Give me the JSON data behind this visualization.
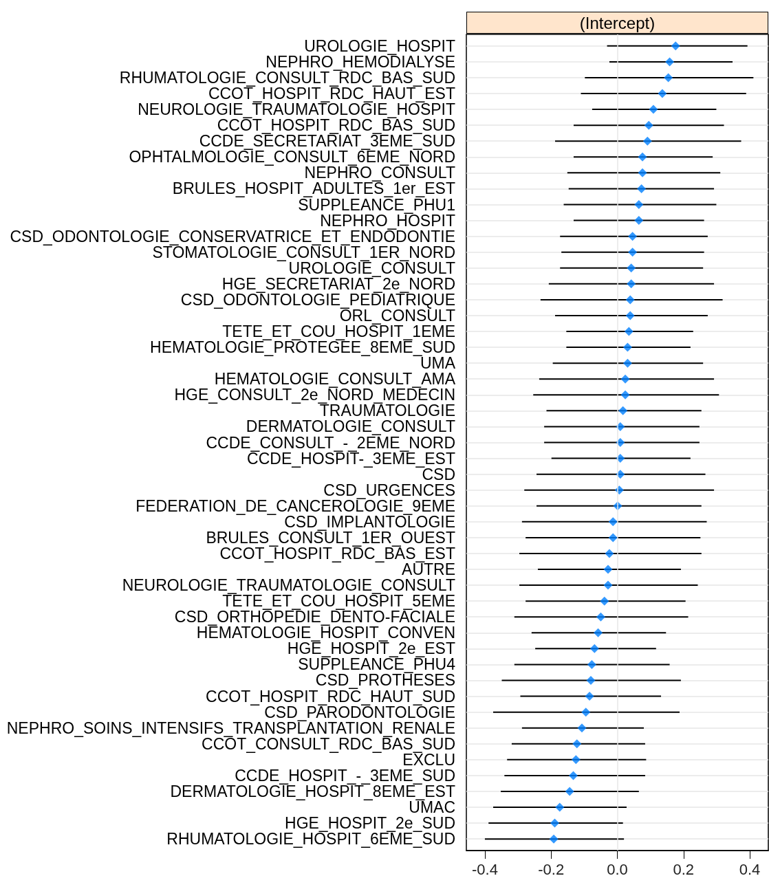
{
  "chart_data": {
    "type": "scatter",
    "title": "(Intercept)",
    "orientation": "horizontal",
    "marker": "diamond",
    "color": "#0080ff",
    "grid": "y",
    "categories": [
      "UROLOGIE_HOSPIT",
      "NEPHRO_HEMODIALYSE",
      "RHUMATOLOGIE_CONSULT_RDC_BAS_SUD",
      "CCOT_HOSPIT_RDC_HAUT_EST",
      "NEUROLOGIE_TRAUMATOLOGIE_HOSPIT",
      "CCOT_HOSPIT_RDC_BAS_SUD",
      "CCDE_SECRETARIAT_3EME_SUD",
      "OPHTALMOLOGIE_CONSULT_6EME_NORD",
      "NEPHRO_CONSULT",
      "BRULES_HOSPIT_ADULTES_1er_EST",
      "SUPPLEANCE_PHU1",
      "NEPHRO_HOSPIT",
      "CSD_ODONTOLOGIE_CONSERVATRICE_ET_ENDODONTIE",
      "STOMATOLOGIE_CONSULT_1ER_NORD",
      "UROLOGIE_CONSULT",
      "HGE_SECRETARIAT_2e_NORD",
      "CSD_ODONTOLOGIE_PEDIATRIQUE",
      "ORL_CONSULT",
      "TETE_ET_COU_HOSPIT_1EME",
      "HEMATOLOGIE_PROTEGEE_8EME_SUD",
      "UMA",
      "HEMATOLOGIE_CONSULT_AMA",
      "HGE_CONSULT_2e_NORD_MEDECIN",
      "TRAUMATOLOGIE",
      "DERMATOLOGIE_CONSULT",
      "CCDE_CONSULT_-_2EME_NORD",
      "CCDE_HOSPIT-_3EME_EST",
      "CSD",
      "CSD_URGENCES",
      "FEDERATION_DE_CANCEROLOGIE_9EME",
      "CSD_IMPLANTOLOGIE",
      "BRULES_CONSULT_1ER_OUEST",
      "CCOT_HOSPIT_RDC_BAS_EST",
      "AUTRE",
      "NEUROLOGIE_TRAUMATOLOGIE_CONSULT",
      "TETE_ET_COU_HOSPIT_5EME",
      "CSD_ORTHOPEDIE_DENTO-FACIALE",
      "HEMATOLOGIE_HOSPIT_CONVEN",
      "HGE_HOSPIT_2e_EST",
      "SUPPLEANCE_PHU4",
      "CSD_PROTHESES",
      "CCOT_HOSPIT_RDC_HAUT_SUD",
      "CSD_PARODONTOLOGIE",
      "NEPHRO_SOINS_INTENSIFS_TRANSPLANTATION_RENALE",
      "CCOT_CONSULT_RDC_BAS_SUD",
      "EXCLU",
      "CCDE_HOSPIT_-_3EME_SUD",
      "DERMATOLOGIE_HOSPIT_8EME_EST",
      "UMAC",
      "HGE_HOSPIT_2e_SUD",
      "RHUMATOLOGIE_HOSPIT_6EME_SUD"
    ],
    "values": [
      0.176,
      0.158,
      0.154,
      0.136,
      0.109,
      0.095,
      0.091,
      0.076,
      0.076,
      0.073,
      0.065,
      0.065,
      0.046,
      0.046,
      0.042,
      0.042,
      0.039,
      0.039,
      0.035,
      0.031,
      0.031,
      0.024,
      0.024,
      0.017,
      0.009,
      0.009,
      0.009,
      0.009,
      0.006,
      0.001,
      -0.013,
      -0.013,
      -0.024,
      -0.028,
      -0.028,
      -0.039,
      -0.05,
      -0.058,
      -0.069,
      -0.077,
      -0.08,
      -0.084,
      -0.095,
      -0.107,
      -0.122,
      -0.125,
      -0.133,
      -0.144,
      -0.174,
      -0.189,
      -0.192
    ],
    "errors": [
      [
        -0.031,
        0.393
      ],
      [
        -0.024,
        0.348
      ],
      [
        -0.098,
        0.411
      ],
      [
        -0.11,
        0.389
      ],
      [
        -0.076,
        0.299
      ],
      [
        -0.132,
        0.322
      ],
      [
        -0.188,
        0.374
      ],
      [
        -0.132,
        0.288
      ],
      [
        -0.151,
        0.311
      ],
      [
        -0.147,
        0.292
      ],
      [
        -0.162,
        0.299
      ],
      [
        -0.132,
        0.262
      ],
      [
        -0.173,
        0.273
      ],
      [
        -0.169,
        0.262
      ],
      [
        -0.173,
        0.259
      ],
      [
        -0.207,
        0.292
      ],
      [
        -0.232,
        0.318
      ],
      [
        -0.188,
        0.273
      ],
      [
        -0.154,
        0.229
      ],
      [
        -0.154,
        0.221
      ],
      [
        -0.195,
        0.259
      ],
      [
        -0.236,
        0.292
      ],
      [
        -0.254,
        0.307
      ],
      [
        -0.214,
        0.254
      ],
      [
        -0.221,
        0.248
      ],
      [
        -0.221,
        0.248
      ],
      [
        -0.199,
        0.221
      ],
      [
        -0.244,
        0.266
      ],
      [
        -0.281,
        0.292
      ],
      [
        -0.244,
        0.254
      ],
      [
        -0.288,
        0.27
      ],
      [
        -0.277,
        0.251
      ],
      [
        -0.296,
        0.254
      ],
      [
        -0.24,
        0.192
      ],
      [
        -0.296,
        0.243
      ],
      [
        -0.277,
        0.206
      ],
      [
        -0.311,
        0.214
      ],
      [
        -0.259,
        0.147
      ],
      [
        -0.248,
        0.117
      ],
      [
        -0.311,
        0.158
      ],
      [
        -0.349,
        0.192
      ],
      [
        -0.293,
        0.132
      ],
      [
        -0.375,
        0.188
      ],
      [
        -0.288,
        0.08
      ],
      [
        -0.319,
        0.084
      ],
      [
        -0.333,
        0.087
      ],
      [
        -0.341,
        0.084
      ],
      [
        -0.352,
        0.065
      ],
      [
        -0.375,
        0.028
      ],
      [
        -0.389,
        0.017
      ],
      [
        -0.4,
        0.02
      ]
    ],
    "xlim": [
      -0.456,
      0.456
    ],
    "xticks": [
      -0.4,
      -0.2,
      {
        "value": 0,
        "label": "0.0"
      },
      0.2,
      0.4
    ],
    "ref_lines": [
      {
        "axis": "x",
        "value": 0,
        "color": "#e6e6e6"
      }
    ]
  }
}
